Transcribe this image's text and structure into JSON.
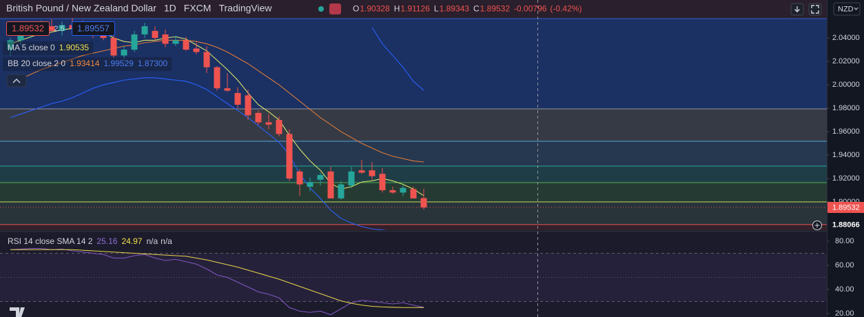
{
  "header": {
    "symbol": "British Pound / New Zealand Dollar",
    "interval": "1D",
    "source": "FXCM",
    "platform": "TradingView",
    "ohlc_letters": [
      "O",
      "H",
      "L",
      "C"
    ],
    "ohlc": [
      1.90328,
      1.91126,
      1.89343,
      1.89532
    ],
    "change": -0.00796,
    "change_pct": {
      "value": -0.42,
      "label": "(-0.42%)"
    }
  },
  "quote": {
    "bid": 1.89532,
    "spread": 2.5,
    "ask": 1.89557
  },
  "currency": "NZD",
  "chart_data": [
    {
      "type": "candlestick",
      "open": [
        2.03,
        2.038,
        2.044,
        2.047,
        2.05,
        2.046,
        2.051,
        2.048,
        2.045,
        2.043,
        2.04,
        2.025,
        2.03,
        2.043,
        2.046,
        2.043,
        2.035,
        2.038,
        2.031,
        2.028,
        2.015,
        1.997,
        1.993,
        1.991,
        1.976,
        1.968,
        1.97,
        1.958,
        1.926,
        1.913,
        1.919,
        1.926,
        1.903,
        1.914,
        1.927,
        1.927,
        1.924,
        1.91,
        1.908,
        1.911,
        1.90328
      ],
      "high": [
        2.04,
        2.048,
        2.05,
        2.055,
        2.056,
        2.054,
        2.057,
        2.055,
        2.052,
        2.05,
        2.044,
        2.033,
        2.046,
        2.053,
        2.05,
        2.047,
        2.042,
        2.041,
        2.036,
        2.033,
        2.016,
        2.01,
        1.998,
        1.996,
        1.978,
        1.975,
        1.973,
        1.962,
        1.928,
        1.921,
        1.925,
        1.93,
        1.918,
        1.93,
        1.936,
        1.934,
        1.929,
        1.913,
        1.915,
        1.913,
        1.91126
      ],
      "low": [
        2.025,
        2.034,
        2.04,
        2.043,
        2.045,
        2.042,
        2.046,
        2.043,
        2.04,
        2.038,
        2.023,
        2.022,
        2.028,
        2.04,
        2.038,
        2.032,
        2.033,
        2.029,
        2.026,
        2.01,
        1.995,
        1.994,
        1.98,
        1.97,
        1.966,
        1.962,
        1.956,
        1.918,
        1.905,
        1.909,
        1.914,
        1.903,
        1.902,
        1.912,
        1.924,
        1.919,
        1.908,
        1.907,
        1.905,
        1.903,
        1.89343
      ],
      "close": [
        2.038,
        2.044,
        2.047,
        2.05,
        2.046,
        2.051,
        2.048,
        2.045,
        2.043,
        2.04,
        2.025,
        2.03,
        2.043,
        2.05,
        2.04,
        2.035,
        2.038,
        2.03,
        2.028,
        2.015,
        1.997,
        1.995,
        1.983,
        1.974,
        1.968,
        1.966,
        1.958,
        1.92,
        1.915,
        1.917,
        1.923,
        1.903,
        1.915,
        1.926,
        1.925,
        1.922,
        1.91,
        1.908,
        1.912,
        1.903,
        1.89532
      ],
      "up_color": "#26a69a",
      "down_color": "#ef5350",
      "ylim": [
        1.8759,
        2.0571
      ],
      "yticks": [
        {
          "value": 2.04,
          "label": "2.04000"
        },
        {
          "value": 2.02,
          "label": "2.02000"
        },
        {
          "value": 2.0,
          "label": "2.00000"
        },
        {
          "value": 1.98,
          "label": "1.98000"
        },
        {
          "value": 1.96,
          "label": "1.96000"
        },
        {
          "value": 1.94,
          "label": "1.94000"
        },
        {
          "value": 1.92,
          "label": "1.92000"
        },
        {
          "value": 1.9,
          "label": "1.90000"
        }
      ],
      "levels": [
        2.0565,
        1.97941,
        1.95176,
        1.93059,
        1.91647,
        1.9,
        1.88066
      ],
      "level_colors": [
        "#2f5fd0",
        "#9598a1",
        "#4fa3e0",
        "#26a69a",
        "#4caf50",
        "#c6e05a",
        "#ef5350"
      ],
      "zone_colors": [
        "#2a1f2c",
        "#1b3063",
        "#363a45",
        "#26384f",
        "#1f3d47",
        "#263a34",
        "#28333a",
        "#33202a"
      ],
      "indicators": [
        {
          "label": "MA 5 close 0",
          "legend_values": [
            1.90535
          ],
          "legend_colors": [
            "#f0e04a"
          ],
          "lines": [
            {
              "color": "#d9e36a",
              "values": [
                2.035,
                2.038,
                2.041,
                2.044,
                2.045,
                2.047,
                2.048,
                2.048,
                2.047,
                2.045,
                2.04,
                2.037,
                2.036,
                2.038,
                2.038,
                2.04,
                2.041,
                2.039,
                2.034,
                2.029,
                2.021,
                2.013,
                2.004,
                1.993,
                1.983,
                1.977,
                1.97,
                1.957,
                1.945,
                1.935,
                1.927,
                1.916,
                1.911,
                1.913,
                1.917,
                1.918,
                1.92,
                1.918,
                1.915,
                1.911,
                1.90535
              ]
            }
          ]
        },
        {
          "label": "BB 20 close 2 0",
          "legend_values": [
            1.93414,
            1.99529,
            {
              "value": 1.873,
              "label": "1.87300"
            }
          ],
          "legend_colors": [
            "#f08a3c",
            "#4d7cf0",
            "#4d7cf0"
          ],
          "lines": [
            {
              "color": "#e07b39",
              "values": [
                2.001,
                2.005,
                2.009,
                2.013,
                2.016,
                2.019,
                2.022,
                2.025,
                2.027,
                2.029,
                2.031,
                2.033,
                2.034,
                2.036,
                2.037,
                2.038,
                2.038,
                2.038,
                2.037,
                2.035,
                2.032,
                2.028,
                2.023,
                2.018,
                2.012,
                2.006,
                2.0,
                1.993,
                1.986,
                1.979,
                1.972,
                1.966,
                1.96,
                1.955,
                1.95,
                1.946,
                1.942,
                1.939,
                1.937,
                1.935,
                1.93414
              ]
            },
            {
              "color": "#2962ff",
              "values": [
                null,
                null,
                null,
                null,
                null,
                null,
                null,
                null,
                null,
                null,
                null,
                null,
                null,
                null,
                null,
                null,
                null,
                null,
                null,
                null,
                null,
                null,
                null,
                null,
                null,
                null,
                null,
                null,
                null,
                null,
                null,
                null,
                null,
                null,
                null,
                2.049,
                2.035,
                2.025,
                2.015,
                2.003,
                1.99529
              ]
            },
            {
              "color": "#2962ff",
              "values": [
                1.972,
                1.975,
                1.978,
                1.981,
                1.984,
                1.986,
                1.989,
                1.993,
                1.997,
                2.0,
                2.002,
                2.004,
                2.005,
                2.006,
                2.006,
                2.005,
                2.004,
                2.003,
                2.0,
                1.996,
                1.99,
                1.984,
                1.978,
                1.972,
                1.965,
                1.958,
                1.951,
                1.94,
                1.924,
                1.912,
                1.903,
                1.893,
                1.886,
                1.882,
                1.879,
                1.877,
                1.876,
                1.875,
                1.874,
                1.873,
                1.873
              ]
            }
          ]
        }
      ]
    },
    {
      "type": "line",
      "label": "RSI 14 close SMA 14 2",
      "legend_values": [
        25.16,
        24.97
      ],
      "legend_colors": [
        "#8e6fd6",
        "#f0e04a"
      ],
      "legend_na": [
        "n/a",
        "n/a"
      ],
      "series": [
        {
          "color": "#7e57c2",
          "values": [
            73,
            73.5,
            74,
            74,
            73,
            73.5,
            72,
            71,
            70,
            69,
            66,
            66,
            68,
            69,
            66,
            64,
            65,
            63,
            61,
            57,
            52,
            50,
            46,
            42,
            38,
            36,
            33,
            25,
            22,
            21,
            22,
            19,
            24,
            29,
            31,
            30,
            29,
            28,
            29,
            27,
            25.16
          ]
        },
        {
          "color": "#e8d44d",
          "values": [
            73,
            73,
            73,
            73,
            73,
            73,
            73,
            72.5,
            72,
            71.5,
            71,
            70.5,
            70,
            69.5,
            69,
            68.5,
            68,
            67.5,
            66,
            64.5,
            62.5,
            60.5,
            58.5,
            56,
            53.5,
            51,
            48.5,
            45.5,
            42.5,
            39.5,
            36.5,
            33.5,
            30.5,
            28.5,
            27,
            26,
            25.5,
            25.2,
            25,
            25,
            24.97
          ]
        }
      ],
      "ylim": [
        17.14,
        87.43
      ],
      "yticks": [
        {
          "value": 80,
          "label": "80.00"
        },
        {
          "value": 60,
          "label": "60.00"
        },
        {
          "value": 40,
          "label": "40.00"
        },
        {
          "value": 20,
          "label": "20.00"
        }
      ],
      "bands": [
        70,
        50,
        30
      ]
    }
  ]
}
